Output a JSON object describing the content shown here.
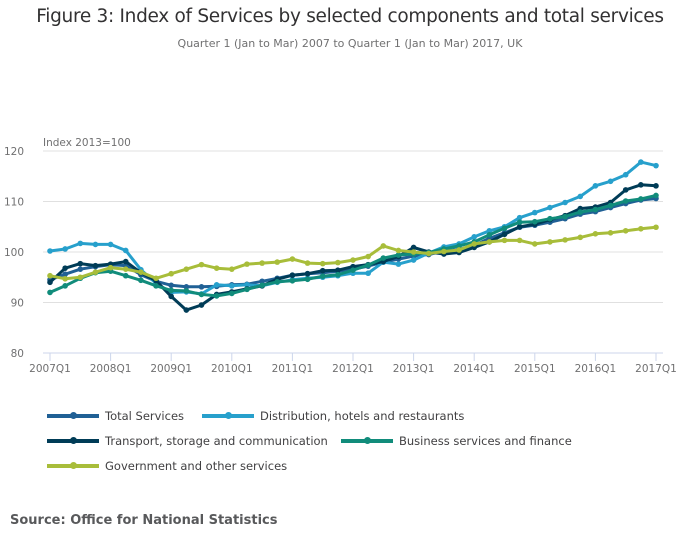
{
  "chart_data": {
    "type": "line",
    "title": "Figure 3: Index of Services by selected components and total services",
    "subtitle": "Quarter 1 (Jan to Mar) 2007 to Quarter 1 (Jan to Mar) 2017, UK",
    "ylabel": "Index 2013=100",
    "xlabel": "",
    "ylim": [
      80,
      120
    ],
    "yticks": [
      "80",
      "90",
      "100",
      "110",
      "120"
    ],
    "xticks": [
      "2007Q1",
      "2008Q1",
      "2009Q1",
      "2010Q1",
      "2011Q1",
      "2012Q1",
      "2013Q1",
      "2014Q1",
      "2015Q1",
      "2016Q1",
      "2017Q1"
    ],
    "grid": true,
    "legend_position": "bottom",
    "x": [
      "2007Q1",
      "2007Q2",
      "2007Q3",
      "2007Q4",
      "2008Q1",
      "2008Q2",
      "2008Q3",
      "2008Q4",
      "2009Q1",
      "2009Q2",
      "2009Q3",
      "2009Q4",
      "2010Q1",
      "2010Q2",
      "2010Q3",
      "2010Q4",
      "2011Q1",
      "2011Q2",
      "2011Q3",
      "2011Q4",
      "2012Q1",
      "2012Q2",
      "2012Q3",
      "2012Q4",
      "2013Q1",
      "2013Q2",
      "2013Q3",
      "2013Q4",
      "2014Q1",
      "2014Q2",
      "2014Q3",
      "2014Q4",
      "2015Q1",
      "2015Q2",
      "2015Q3",
      "2015Q4",
      "2016Q1",
      "2016Q2",
      "2016Q3",
      "2016Q4",
      "2017Q1"
    ],
    "series": [
      {
        "name": "Total Services",
        "color": "#206095",
        "values": [
          94.5,
          95.6,
          96.6,
          97.1,
          97.5,
          97.3,
          95.5,
          94.2,
          93.4,
          93.1,
          93.1,
          93.2,
          93.5,
          93.6,
          94.2,
          94.8,
          95.4,
          95.7,
          95.9,
          96.2,
          96.6,
          97.2,
          98.0,
          98.6,
          99.2,
          99.5,
          100.2,
          100.5,
          101.3,
          102.7,
          103.8,
          104.9,
          105.3,
          105.9,
          106.6,
          107.5,
          108.0,
          108.8,
          109.6,
          110.3,
          110.6
        ]
      },
      {
        "name": "Distribution, hotels and restaurants",
        "color": "#27a0cc",
        "values": [
          100.2,
          100.6,
          101.7,
          101.5,
          101.5,
          100.3,
          96.5,
          93.8,
          92.0,
          92.1,
          91.7,
          93.5,
          93.3,
          93.5,
          93.3,
          94.0,
          94.5,
          94.8,
          95.0,
          95.3,
          95.8,
          95.8,
          98.0,
          97.6,
          98.4,
          99.8,
          101.0,
          101.6,
          103.0,
          104.2,
          105.0,
          106.8,
          107.8,
          108.8,
          109.8,
          111.0,
          113.1,
          114.0,
          115.3,
          117.8,
          117.1
        ]
      },
      {
        "name": "Transport, storage and communication",
        "color": "#003c57",
        "values": [
          94.0,
          96.8,
          97.7,
          97.3,
          97.6,
          98.1,
          95.9,
          94.3,
          91.2,
          88.5,
          89.5,
          91.6,
          92.1,
          92.7,
          93.3,
          94.6,
          95.4,
          95.7,
          96.3,
          96.4,
          97.1,
          97.5,
          98.1,
          99.1,
          100.9,
          100.0,
          99.6,
          99.9,
          100.9,
          102.0,
          103.5,
          105.0,
          105.5,
          106.4,
          107.2,
          108.6,
          108.9,
          109.8,
          112.3,
          113.3,
          113.1
        ]
      },
      {
        "name": "Business services and finance",
        "color": "#118c7b",
        "values": [
          92.0,
          93.3,
          94.8,
          95.9,
          96.2,
          95.3,
          94.4,
          93.3,
          92.4,
          92.3,
          91.6,
          91.3,
          91.8,
          92.6,
          93.4,
          94.1,
          94.3,
          94.6,
          95.2,
          95.5,
          96.4,
          97.4,
          98.8,
          99.4,
          99.6,
          99.9,
          100.6,
          101.2,
          102.0,
          103.4,
          104.7,
          105.9,
          106.0,
          106.6,
          107.0,
          107.9,
          108.4,
          109.2,
          110.1,
          110.5,
          111.2
        ]
      },
      {
        "name": "Government and other services",
        "color": "#a8bd3a",
        "values": [
          95.3,
          94.7,
          95.0,
          96.0,
          96.9,
          96.6,
          96.0,
          94.8,
          95.7,
          96.6,
          97.5,
          96.8,
          96.6,
          97.6,
          97.8,
          98.0,
          98.6,
          97.8,
          97.7,
          97.9,
          98.4,
          99.1,
          101.2,
          100.3,
          100.0,
          99.7,
          100.1,
          100.4,
          101.6,
          102.0,
          102.3,
          102.3,
          101.6,
          102.0,
          102.4,
          102.9,
          103.6,
          103.8,
          104.2,
          104.6,
          104.9
        ]
      }
    ]
  },
  "source": "Source: Office for National Statistics"
}
